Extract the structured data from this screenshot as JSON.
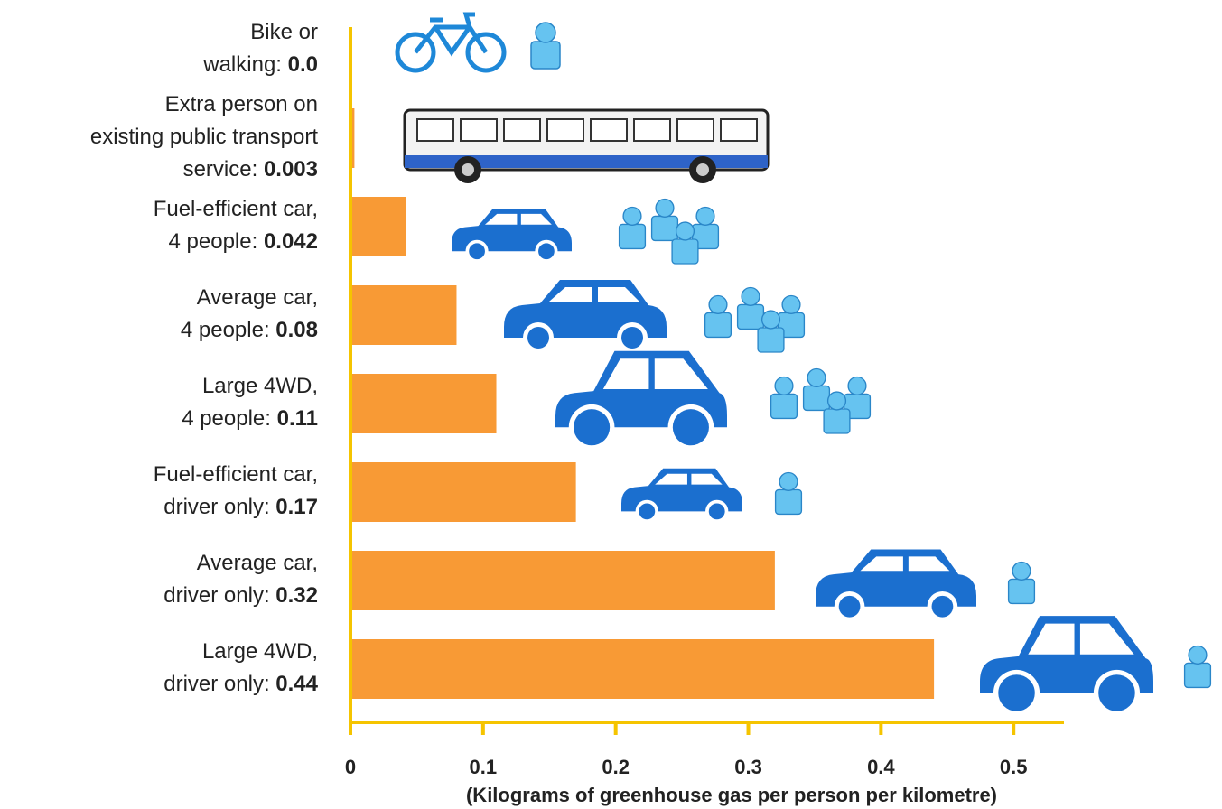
{
  "chart_data": {
    "type": "bar",
    "orientation": "horizontal",
    "categories": [
      [
        "Bike or",
        "walking:"
      ],
      [
        "Extra person on",
        "existing public transport",
        "service:"
      ],
      [
        "Fuel-efficient car,",
        "4 people:"
      ],
      [
        "Average car,",
        "4 people:"
      ],
      [
        "Large 4WD,",
        "4 people:"
      ],
      [
        "Fuel-efficient car,",
        "driver only:"
      ],
      [
        "Average car,",
        "driver only:"
      ],
      [
        "Large 4WD,",
        "driver only:"
      ]
    ],
    "values": [
      0,
      0.003,
      0.042,
      0.08,
      0.11,
      0.17,
      0.32,
      0.44
    ],
    "value_labels": [
      "0.0",
      "0.003",
      "0.042",
      "0.08",
      "0.11",
      "0.17",
      "0.32",
      "0.44"
    ],
    "color": "#f89a35",
    "axis_color": "#f5c400",
    "xlim": [
      0,
      0.538
    ],
    "xticks": [
      0,
      0.1,
      0.2,
      0.3,
      0.4,
      0.5
    ],
    "x_label": "(Kilograms of greenhouse gas per person per kilometre)"
  }
}
